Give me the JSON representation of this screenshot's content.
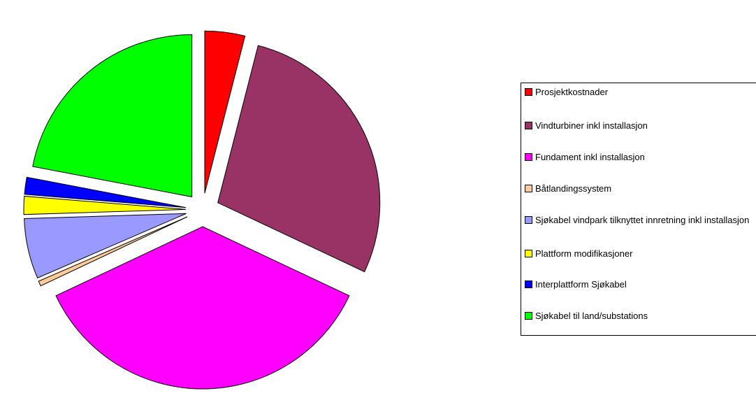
{
  "chart_data": {
    "type": "pie",
    "categories": [
      "Prosjektkostnader",
      "Vindturbiner inkl installasjon",
      "Fundament inkl installasjon",
      "Båtlandingssystem",
      "Sjøkabel vindpark tilknyttet innretning inkl installasjon",
      "Plattform modifikasjoner",
      "Interplattform Sjøkabel",
      "Sjøkabel til land/substations"
    ],
    "values": [
      4,
      28,
      36,
      0.5,
      6,
      1.8,
      1.7,
      22
    ],
    "colors": [
      "#ff0000",
      "#993366",
      "#ff00ff",
      "#ffcc99",
      "#9999ff",
      "#ffff00",
      "#0000ff",
      "#00ff00"
    ],
    "legend": "right"
  }
}
